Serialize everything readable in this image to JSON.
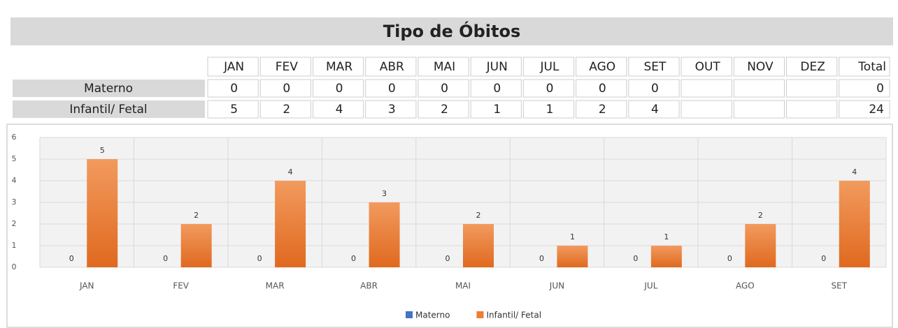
{
  "table": {
    "title": "Tipo de Óbitos",
    "header": [
      "JAN",
      "FEV",
      "MAR",
      "ABR",
      "MAI",
      "JUN",
      "JUL",
      "AGO",
      "SET",
      "OUT",
      "NOV",
      "DEZ",
      "Total"
    ],
    "rows": [
      {
        "label": "Materno",
        "cells": [
          0,
          0,
          0,
          0,
          0,
          0,
          0,
          0,
          0,
          null,
          null,
          null,
          0
        ]
      },
      {
        "label": "Infantil/ Fetal",
        "cells": [
          5,
          2,
          4,
          3,
          2,
          1,
          1,
          2,
          4,
          null,
          null,
          null,
          24
        ]
      }
    ]
  },
  "chart_data": {
    "type": "bar",
    "categories": [
      "JAN",
      "FEV",
      "MAR",
      "ABR",
      "MAI",
      "JUN",
      "JUL",
      "AGO",
      "SET"
    ],
    "series": [
      {
        "name": "Materno",
        "color": "#4472c4",
        "values": [
          0,
          0,
          0,
          0,
          0,
          0,
          0,
          0,
          0
        ]
      },
      {
        "name": "Infantil/ Fetal",
        "color": "#ed7d31",
        "values": [
          5,
          2,
          4,
          3,
          2,
          1,
          1,
          2,
          4
        ]
      }
    ],
    "ylim": [
      0,
      6
    ],
    "yticks": [
      0,
      1,
      2,
      3,
      4,
      5,
      6
    ],
    "grid": true,
    "data_labels": true,
    "legend": "bottom"
  }
}
